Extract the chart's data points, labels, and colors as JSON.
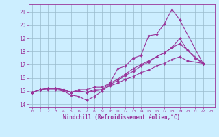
{
  "bg_color": "#cceeff",
  "line_color": "#993399",
  "grid_color": "#99bbcc",
  "xlabel": "Windchill (Refroidissement éolien,°C)",
  "xlabel_color": "#993399",
  "tick_color": "#993399",
  "xlim": [
    -0.5,
    23.5
  ],
  "ylim": [
    13.8,
    21.6
  ],
  "yticks": [
    14,
    15,
    16,
    17,
    18,
    19,
    20,
    21
  ],
  "xticks": [
    0,
    1,
    2,
    3,
    4,
    5,
    6,
    7,
    8,
    9,
    10,
    11,
    12,
    13,
    14,
    15,
    16,
    17,
    18,
    19,
    20,
    21,
    22,
    23
  ],
  "series": [
    {
      "x": [
        0,
        1,
        2,
        3,
        4,
        5,
        6,
        7,
        8,
        9,
        10,
        11,
        12,
        13,
        14,
        15,
        16,
        17,
        18,
        19,
        22
      ],
      "y": [
        14.9,
        15.1,
        15.1,
        15.1,
        15.0,
        14.7,
        14.6,
        14.3,
        14.6,
        15.0,
        15.5,
        15.8,
        16.2,
        16.5,
        16.9,
        17.2,
        17.6,
        17.9,
        18.3,
        18.6,
        17.1
      ]
    },
    {
      "x": [
        0,
        1,
        2,
        3,
        4,
        5,
        6,
        7,
        8,
        9,
        10,
        11,
        12,
        13,
        14,
        15,
        16,
        17,
        18,
        19,
        22
      ],
      "y": [
        14.9,
        15.1,
        15.2,
        15.2,
        15.1,
        14.9,
        15.1,
        15.1,
        15.3,
        15.3,
        15.6,
        16.7,
        16.9,
        17.5,
        17.7,
        19.2,
        19.3,
        20.1,
        21.2,
        20.4,
        17.1
      ]
    },
    {
      "x": [
        0,
        1,
        2,
        3,
        4,
        5,
        6,
        7,
        8,
        9,
        10,
        11,
        12,
        13,
        14,
        15,
        16,
        17,
        18,
        19,
        20,
        21,
        22
      ],
      "y": [
        14.9,
        15.1,
        15.2,
        15.2,
        15.1,
        14.9,
        15.0,
        14.9,
        15.1,
        15.1,
        15.6,
        15.9,
        16.3,
        16.7,
        17.0,
        17.3,
        17.6,
        17.9,
        18.3,
        19.0,
        18.1,
        17.5,
        17.1
      ]
    },
    {
      "x": [
        0,
        1,
        2,
        3,
        4,
        5,
        6,
        7,
        8,
        9,
        10,
        11,
        12,
        13,
        14,
        15,
        16,
        17,
        18,
        19,
        20,
        22
      ],
      "y": [
        14.9,
        15.1,
        15.2,
        15.2,
        15.1,
        14.9,
        15.0,
        14.9,
        15.0,
        15.1,
        15.4,
        15.6,
        15.9,
        16.1,
        16.4,
        16.6,
        16.9,
        17.1,
        17.4,
        17.6,
        17.3,
        17.1
      ]
    }
  ]
}
